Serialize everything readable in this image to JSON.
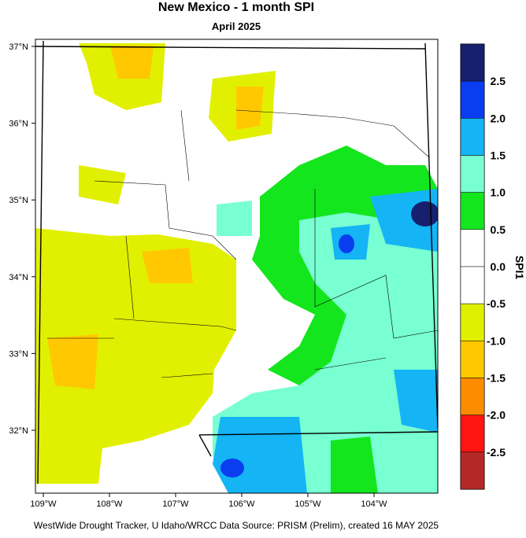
{
  "header": {
    "title": "New Mexico - 1 month SPI",
    "subtitle": "April 2025"
  },
  "map": {
    "lat_labels": [
      "37°N",
      "36°N",
      "35°N",
      "34°N",
      "33°N",
      "32°N"
    ],
    "lon_labels": [
      "109°W",
      "108°W",
      "107°W",
      "106°W",
      "105°W",
      "104°W"
    ]
  },
  "legend": {
    "title": "SPI1",
    "labels": [
      "2.5",
      "2.0",
      "1.5",
      "1.0",
      "0.5",
      "0.0",
      "-0.5",
      "-1.0",
      "-1.5",
      "-2.0",
      "-2.5"
    ],
    "colors": [
      "#16206e",
      "#0a3cf0",
      "#14b4f5",
      "#78ffd2",
      "#14e61e",
      "#ffffff",
      "#ffffff",
      "#e1f000",
      "#ffc800",
      "#ff8c00",
      "#ff1414",
      "#b42828"
    ]
  },
  "footer": "WestWide Drought Tracker, U Idaho/WRCC Data Source: PRISM (Prelim), created 16 MAY 2025"
}
